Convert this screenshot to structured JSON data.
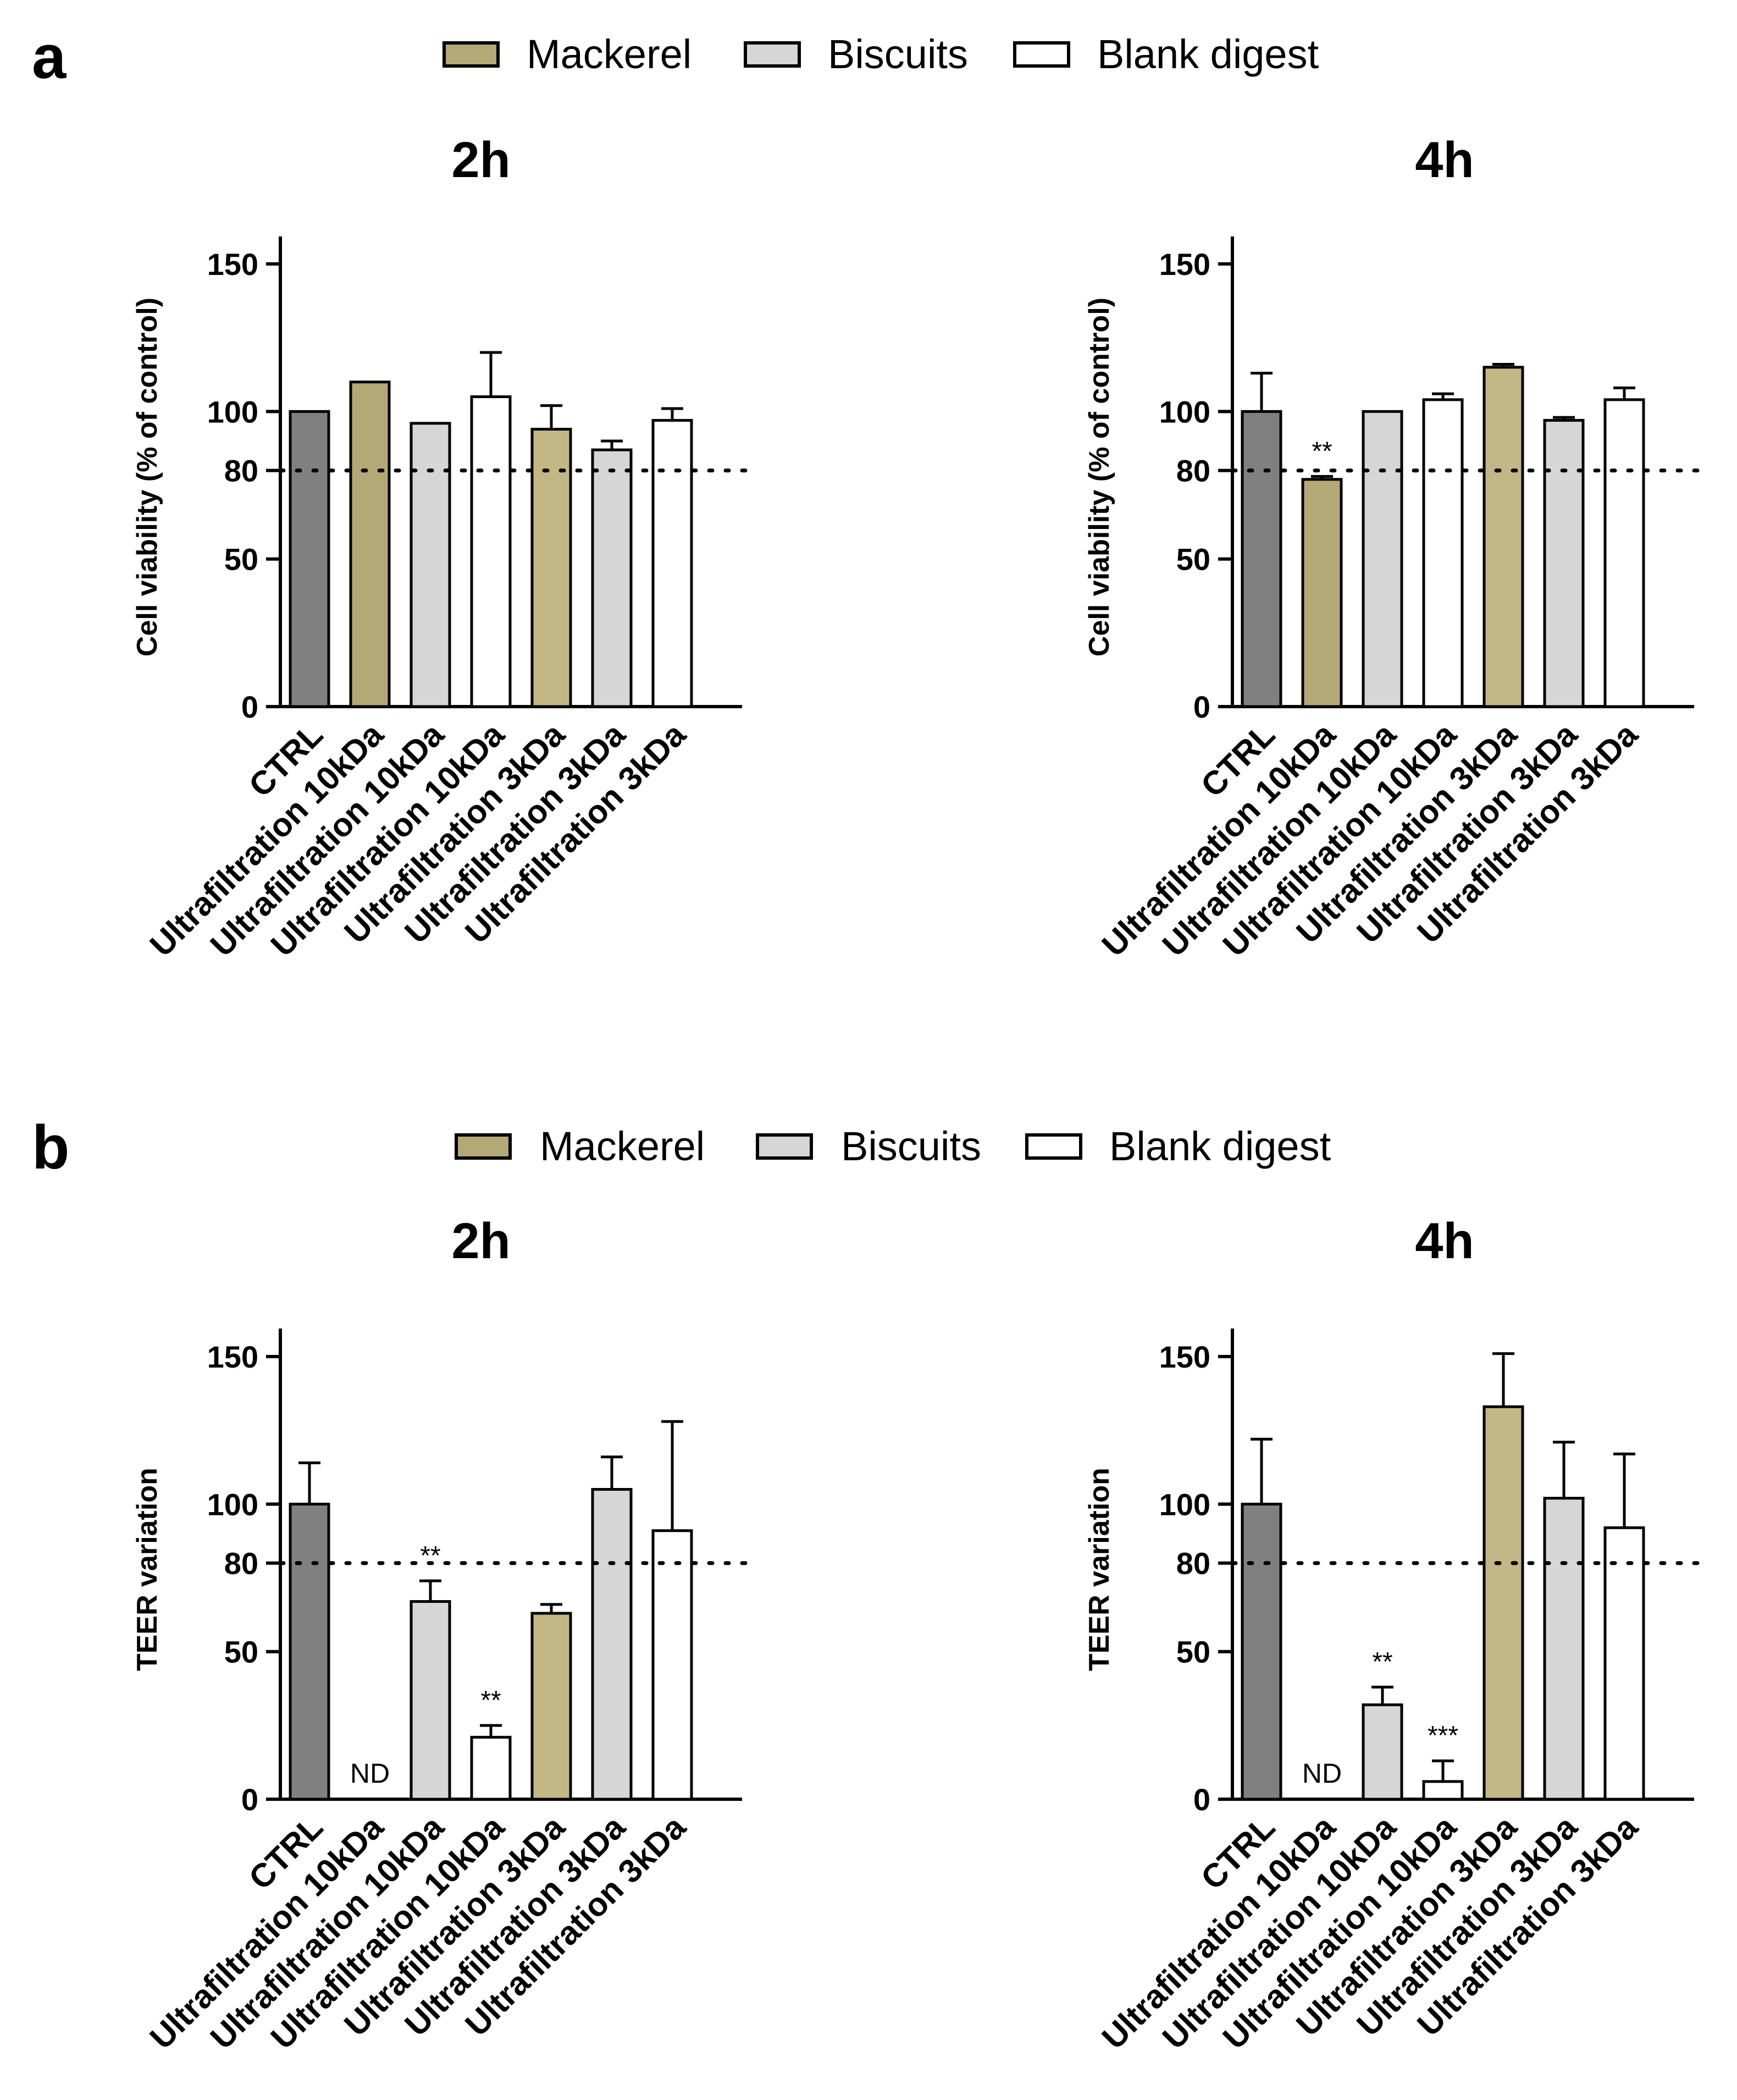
{
  "figure": {
    "panels": [
      {
        "letter": "a",
        "legend": [
          {
            "label": "Mackerel",
            "color": "#b5a877"
          },
          {
            "label": "Biscuits",
            "color": "#d6d6d6"
          },
          {
            "label": "Blank digest",
            "color": "#ffffff"
          }
        ]
      },
      {
        "letter": "b",
        "legend": [
          {
            "label": "Mackerel",
            "color": "#b5a877"
          },
          {
            "label": "Biscuits",
            "color": "#d6d6d6"
          },
          {
            "label": "Blank digest",
            "color": "#ffffff"
          }
        ]
      }
    ]
  },
  "chart_data": [
    {
      "type": "bar",
      "panel": "a",
      "title": "2h",
      "ylabel": "Cell viability (% of control)",
      "ylim": [
        0,
        160
      ],
      "yticks": [
        0,
        50,
        80,
        100,
        150
      ],
      "reference_line": 80,
      "categories": [
        "CTRL",
        "Ultrafiltration 10kDa",
        "Ultrafiltration 10kDa",
        "Ultrafiltration 10kDa",
        "Ultrafiltration 3kDa",
        "Ultrafiltration 3kDa",
        "Ultrafiltration 3kDa"
      ],
      "groups": [
        "Control",
        "Mackerel",
        "Biscuits",
        "Blank digest",
        "Mackerel",
        "Biscuits",
        "Blank digest"
      ],
      "colors": [
        "#808080",
        "#b5a877",
        "#d6d6d6",
        "#ffffff",
        "#c3b785",
        "#d6d6d6",
        "#ffffff"
      ],
      "values": [
        100,
        110,
        96,
        105,
        94,
        87,
        97
      ],
      "errors": [
        0,
        0,
        0,
        15,
        8,
        3,
        4
      ],
      "annotations": [
        "",
        "",
        "",
        "",
        "",
        "",
        ""
      ]
    },
    {
      "type": "bar",
      "panel": "a",
      "title": "4h",
      "ylabel": "Cell viability (% of control)",
      "ylim": [
        0,
        160
      ],
      "yticks": [
        0,
        50,
        80,
        100,
        150
      ],
      "reference_line": 80,
      "categories": [
        "CTRL",
        "Ultrafiltration 10kDa",
        "Ultrafiltration 10kDa",
        "Ultrafiltration 10kDa",
        "Ultrafiltration 3kDa",
        "Ultrafiltration 3kDa",
        "Ultrafiltration 3kDa"
      ],
      "groups": [
        "Control",
        "Mackerel",
        "Biscuits",
        "Blank digest",
        "Mackerel",
        "Biscuits",
        "Blank digest"
      ],
      "colors": [
        "#808080",
        "#b5a877",
        "#d6d6d6",
        "#ffffff",
        "#c3b785",
        "#d6d6d6",
        "#ffffff"
      ],
      "values": [
        100,
        77,
        100,
        104,
        115,
        97,
        104
      ],
      "errors": [
        13,
        1,
        0,
        2,
        1,
        1,
        4
      ],
      "annotations": [
        "",
        "**",
        "",
        "",
        "",
        "",
        ""
      ]
    },
    {
      "type": "bar",
      "panel": "b",
      "title": "2h",
      "ylabel": "TEER variation",
      "ylim": [
        0,
        160
      ],
      "yticks": [
        0,
        50,
        80,
        100,
        150
      ],
      "reference_line": 80,
      "categories": [
        "CTRL",
        "Ultrafiltration 10kDa",
        "Ultrafiltration 10kDa",
        "Ultrafiltration 10kDa",
        "Ultrafiltration 3kDa",
        "Ultrafiltration 3kDa",
        "Ultrafiltration 3kDa"
      ],
      "groups": [
        "Control",
        "Mackerel",
        "Biscuits",
        "Blank digest",
        "Mackerel",
        "Biscuits",
        "Blank digest"
      ],
      "colors": [
        "#808080",
        "#b5a877",
        "#d6d6d6",
        "#ffffff",
        "#c3b785",
        "#d6d6d6",
        "#ffffff"
      ],
      "values": [
        100,
        null,
        67,
        21,
        63,
        105,
        91
      ],
      "errors": [
        14,
        0,
        7,
        4,
        3,
        11,
        37
      ],
      "annotations": [
        "",
        "ND",
        "**",
        "**",
        "",
        "",
        ""
      ]
    },
    {
      "type": "bar",
      "panel": "b",
      "title": "4h",
      "ylabel": "TEER variation",
      "ylim": [
        0,
        160
      ],
      "yticks": [
        0,
        50,
        80,
        100,
        150
      ],
      "reference_line": 80,
      "categories": [
        "CTRL",
        "Ultrafiltration 10kDa",
        "Ultrafiltration 10kDa",
        "Ultrafiltration 10kDa",
        "Ultrafiltration 3kDa",
        "Ultrafiltration 3kDa",
        "Ultrafiltration 3kDa"
      ],
      "groups": [
        "Control",
        "Mackerel",
        "Biscuits",
        "Blank digest",
        "Mackerel",
        "Biscuits",
        "Blank digest"
      ],
      "colors": [
        "#808080",
        "#b5a877",
        "#d6d6d6",
        "#ffffff",
        "#c3b785",
        "#d6d6d6",
        "#ffffff"
      ],
      "values": [
        100,
        null,
        32,
        6,
        133,
        102,
        92
      ],
      "errors": [
        22,
        0,
        6,
        7,
        18,
        19,
        25
      ],
      "annotations": [
        "",
        "ND",
        "**",
        "***",
        "",
        "",
        ""
      ]
    }
  ]
}
